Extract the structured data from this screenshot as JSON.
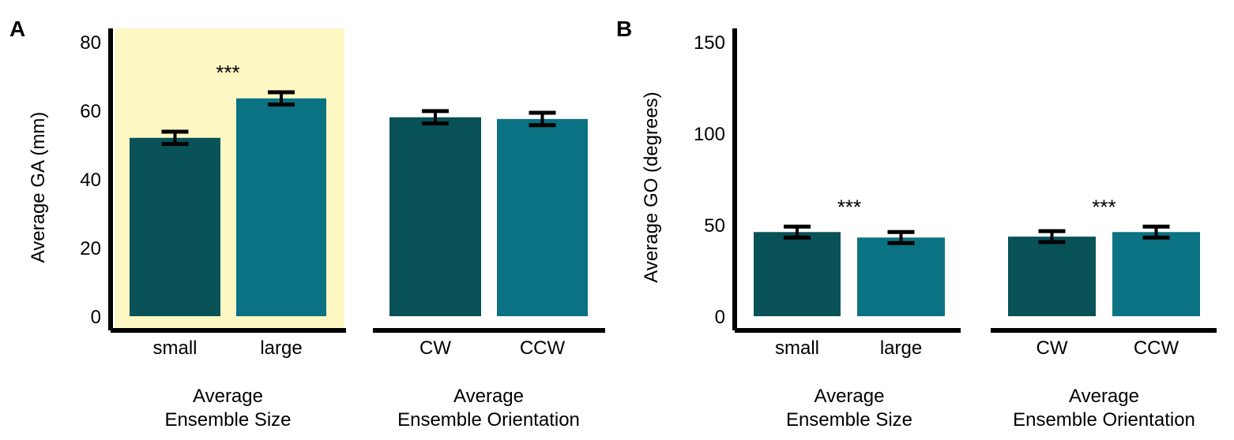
{
  "chart_data": [
    {
      "panel_label": "A",
      "type": "bar",
      "ylabel": "Average GA (mm)",
      "ylim": [
        0,
        80
      ],
      "yticks": [
        0,
        20,
        40,
        60,
        80
      ],
      "highlight_color": "#fdf8c3",
      "highlight_group": 0,
      "groups": [
        {
          "label": "Average\nEnsemble Size",
          "categories": [
            "small",
            "large"
          ],
          "values": [
            52,
            63.5
          ],
          "errors": [
            1.8,
            1.8
          ],
          "colors": [
            "#085258",
            "#0b7283"
          ],
          "significance": "***"
        },
        {
          "label": "Average\nEnsemble Orientation",
          "categories": [
            "CW",
            "CCW"
          ],
          "values": [
            58,
            57.5
          ],
          "errors": [
            1.8,
            1.8
          ],
          "colors": [
            "#085258",
            "#0b7283"
          ],
          "significance": ""
        }
      ]
    },
    {
      "panel_label": "B",
      "type": "bar",
      "ylabel": "Average GO (degrees)",
      "ylim": [
        0,
        150
      ],
      "yticks": [
        0,
        50,
        100,
        150
      ],
      "highlight_color": "",
      "highlight_group": -1,
      "groups": [
        {
          "label": "Average\nEnsemble Size",
          "categories": [
            "small",
            "large"
          ],
          "values": [
            46,
            43
          ],
          "errors": [
            3,
            3
          ],
          "colors": [
            "#085258",
            "#0b7283"
          ],
          "significance": "***"
        },
        {
          "label": "Average\nEnsemble Orientation",
          "categories": [
            "CW",
            "CCW"
          ],
          "values": [
            43.5,
            46
          ],
          "errors": [
            3,
            3
          ],
          "colors": [
            "#085258",
            "#0b7283"
          ],
          "significance": "***"
        }
      ]
    }
  ]
}
